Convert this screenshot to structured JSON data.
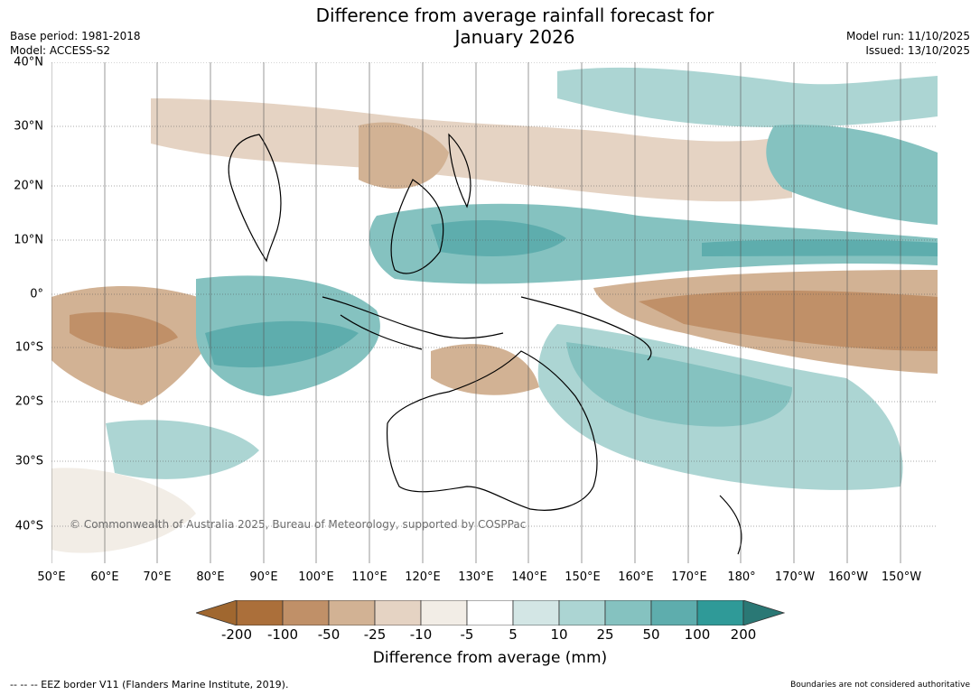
{
  "title_line1": "Difference from average rainfall forecast for",
  "title_line2": "January 2026",
  "meta": {
    "base_period": "Base period: 1981-2018",
    "model": "Model: ACCESS-S2",
    "model_run": "Model run: 11/10/2025",
    "issued": "Issued: 13/10/2025"
  },
  "lat_labels": [
    "40°N",
    "30°N",
    "20°N",
    "10°N",
    "0°",
    "10°S",
    "20°S",
    "30°S",
    "40°S"
  ],
  "lon_labels": [
    "50°E",
    "60°E",
    "70°E",
    "80°E",
    "90°E",
    "100°E",
    "110°E",
    "120°E",
    "130°E",
    "140°E",
    "150°E",
    "160°E",
    "170°E",
    "180°",
    "170°W",
    "160°W",
    "150°W"
  ],
  "copyright": "© Commonwealth of Australia 2025, Bureau of Meteorology, supported by COSPPac",
  "colorbar": {
    "ticks": [
      "-200",
      "-100",
      "-50",
      "-25",
      "-10",
      "-5",
      "5",
      "10",
      "25",
      "50",
      "100",
      "200"
    ],
    "colors": [
      "#ab6f3a",
      "#c09068",
      "#d2b294",
      "#e5d3c3",
      "#f2ede6",
      "#ffffff",
      "#d3e6e5",
      "#acd5d3",
      "#85c2c0",
      "#5eadad",
      "#2f9a98"
    ],
    "low_extend_color": "#a0672f",
    "high_extend_color": "#2a7875",
    "label": "Difference from average (mm)"
  },
  "footer_left": "-- -- -- EEZ border V11 (Flanders Marine Institute, 2019).",
  "footer_right": "Boundaries are not considered authoritative"
}
